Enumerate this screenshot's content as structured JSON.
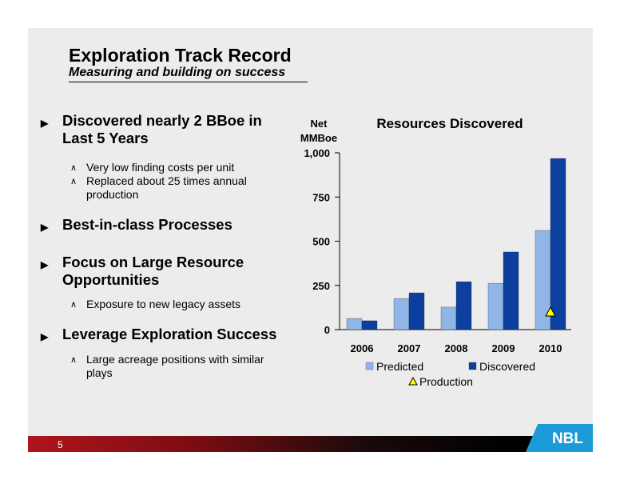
{
  "header": {
    "title": "Exploration Track Record",
    "subtitle": "Measuring and building on success"
  },
  "bullets": [
    {
      "text": "Discovered nearly 2 BBoe in Last 5 Years",
      "sub": [
        "Very low finding costs per unit",
        "Replaced about 25 times annual production"
      ]
    },
    {
      "text": "Best-in-class Processes",
      "sub": []
    },
    {
      "text": "Focus on Large Resource Opportunities",
      "sub": [
        "Exposure to new legacy assets"
      ]
    },
    {
      "text": "Leverage Exploration Success",
      "sub": [
        "Large acreage positions with similar plays"
      ]
    }
  ],
  "footer": {
    "page": "5",
    "logo": "NBL"
  },
  "chart_data": {
    "type": "bar",
    "title": "Resources Discovered",
    "ylabel": [
      "Net",
      "MMBoe"
    ],
    "categories": [
      "2006",
      "2007",
      "2008",
      "2009",
      "2010"
    ],
    "series": [
      {
        "name": "Predicted",
        "color": "#8fb6e6",
        "values": [
          63,
          176,
          127,
          262,
          561
        ]
      },
      {
        "name": "Discovered",
        "color": "#0c3f9e",
        "values": [
          50,
          208,
          271,
          439,
          968
        ]
      },
      {
        "name": "Production",
        "color": "#ffff00",
        "marker": "triangle",
        "values": [
          null,
          null,
          null,
          null,
          95
        ]
      }
    ],
    "ylim": [
      0,
      1000
    ],
    "yticks": [
      0,
      250,
      500,
      750,
      {
        "value": 1000,
        "label": "1,000"
      }
    ],
    "grid": false
  }
}
